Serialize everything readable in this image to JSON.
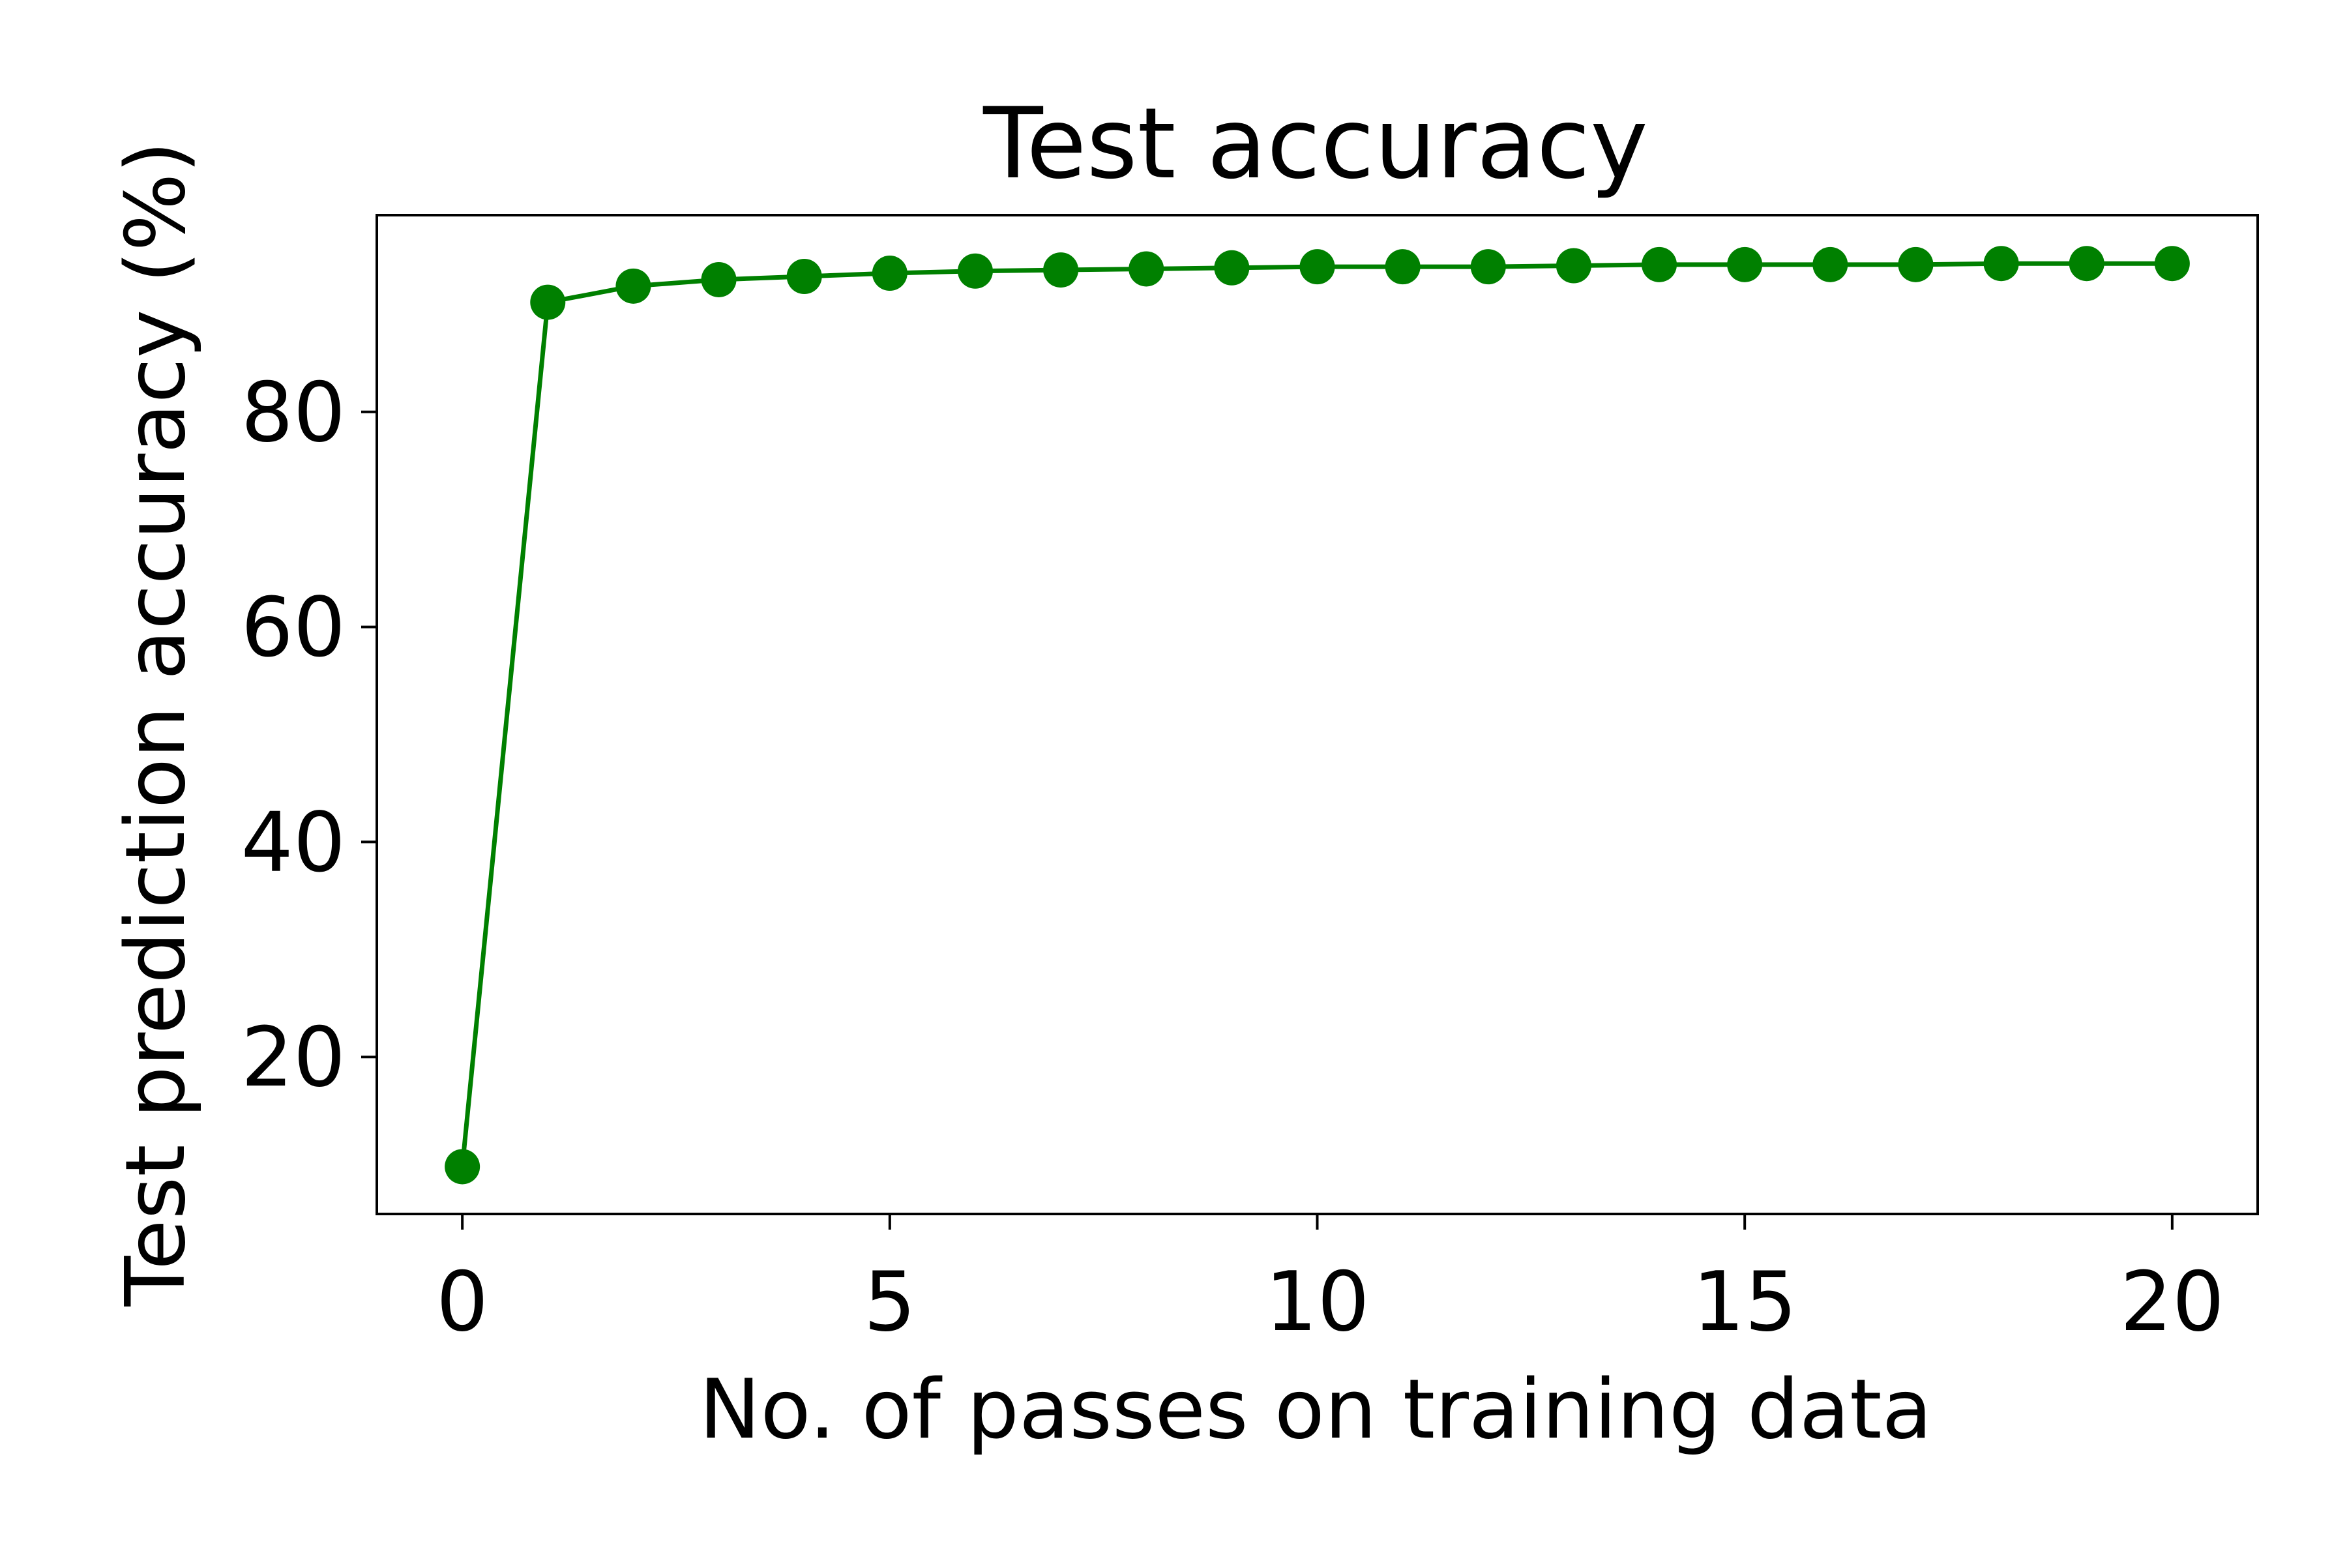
{
  "chart_data": {
    "type": "line",
    "title": "Test accuracy",
    "xlabel": "No. of passes on training data",
    "ylabel": "Test prediction accuracy (%)",
    "xlim": [
      -1,
      21
    ],
    "ylim": [
      5.4,
      98.3
    ],
    "xticks": [
      "0",
      "5",
      "10",
      "15",
      "20"
    ],
    "xtick_values": [
      0,
      5,
      10,
      15,
      20
    ],
    "yticks": [
      "20",
      "40",
      "60",
      "80"
    ],
    "ytick_values": [
      20,
      40,
      60,
      80
    ],
    "grid": false,
    "series": [
      {
        "color": "#008000",
        "marker": "circle",
        "x": [
          0,
          1,
          2,
          3,
          4,
          5,
          6,
          7,
          8,
          9,
          10,
          11,
          12,
          13,
          14,
          15,
          16,
          17,
          18,
          19,
          20
        ],
        "values": [
          9.8,
          90.2,
          91.7,
          92.3,
          92.6,
          92.9,
          93.1,
          93.2,
          93.3,
          93.4,
          93.5,
          93.5,
          93.5,
          93.6,
          93.7,
          93.7,
          93.7,
          93.7,
          93.8,
          93.8,
          93.8
        ]
      }
    ]
  }
}
